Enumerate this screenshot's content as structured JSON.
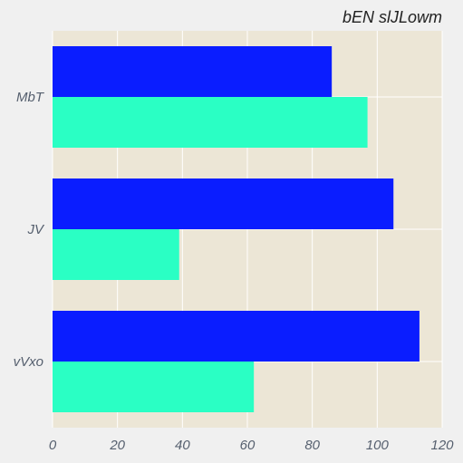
{
  "chart_data": {
    "type": "bar",
    "orientation": "horizontal",
    "title": "bEN slJLowm",
    "xlabel": "",
    "ylabel": "",
    "categories": [
      "MbT",
      "JV",
      "vVxo"
    ],
    "series": [
      {
        "color": "#0a1dff",
        "values": [
          86,
          105,
          113
        ]
      },
      {
        "color": "#2affc4",
        "values": [
          97,
          39,
          62
        ]
      }
    ],
    "xlim": [
      0,
      120
    ],
    "xticks": [
      "0",
      "20",
      "40",
      "60",
      "80",
      "100",
      "120"
    ],
    "grid": true,
    "legend": "none",
    "colors": {
      "plot_background": "#ece6d6",
      "figure_background": "#f0f0f0",
      "grid": "#ffffff"
    }
  }
}
